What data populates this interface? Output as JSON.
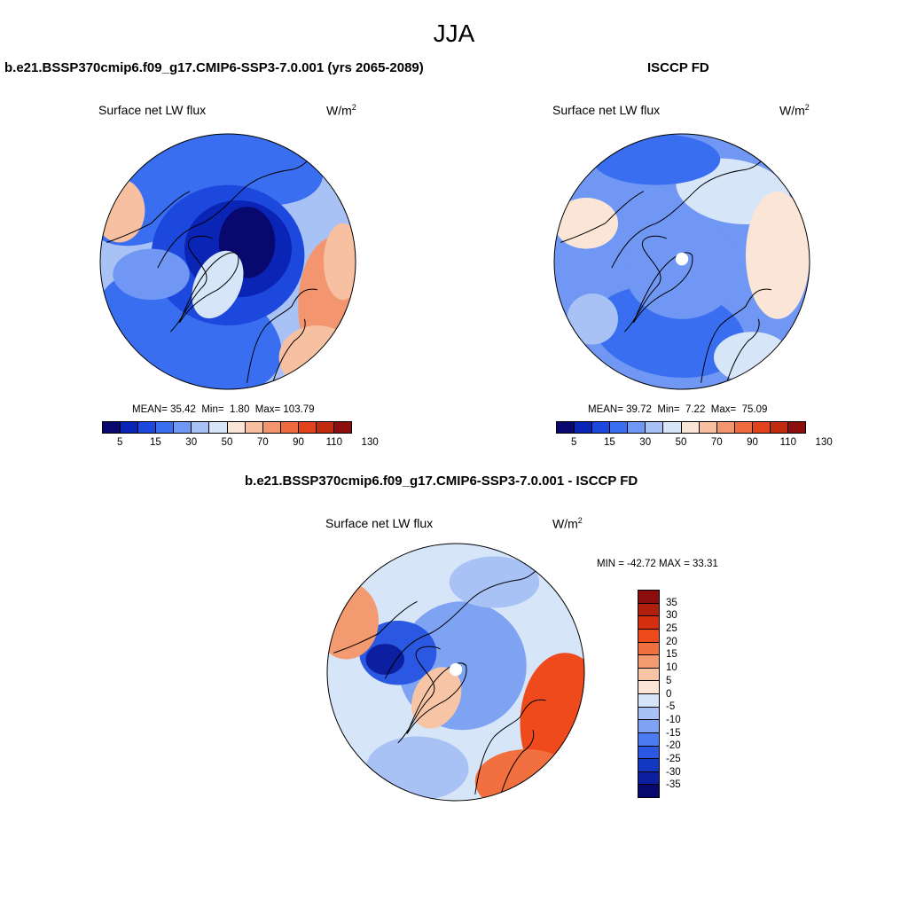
{
  "figure": {
    "season": "JJA"
  },
  "panels": [
    {
      "id": "model",
      "title": "b.e21.BSSP370cmip6.f09_g17.CMIP6-SSP3-7.0.001 (yrs 2065-2089)",
      "variable": "Surface net LW flux",
      "units": "W/m",
      "units_sup": "2",
      "stats": {
        "mean_label": "MEAN=",
        "mean": "35.42",
        "min_label": "Min=",
        "min": "1.80",
        "max_label": "Max=",
        "max": "103.79"
      },
      "levels": [
        "5",
        "15",
        "30",
        "50",
        "70",
        "90",
        "110",
        "130"
      ]
    },
    {
      "id": "obs",
      "title": "ISCCP FD",
      "variable": "Surface net LW flux",
      "units": "W/m",
      "units_sup": "2",
      "stats": {
        "mean_label": "MEAN=",
        "mean": "39.72",
        "min_label": "Min=",
        "min": "7.22",
        "max_label": "Max=",
        "max": "75.09"
      },
      "levels": [
        "5",
        "15",
        "30",
        "50",
        "70",
        "90",
        "110",
        "130"
      ]
    }
  ],
  "difference": {
    "title": "b.e21.BSSP370cmip6.f09_g17.CMIP6-SSP3-7.0.001 - ISCCP FD",
    "variable": "Surface net LW flux",
    "units": "W/m",
    "units_sup": "2",
    "minmax": "MIN = -42.72 MAX =  33.31",
    "levels": [
      "35",
      "30",
      "25",
      "20",
      "15",
      "10",
      "5",
      "0",
      "-5",
      "-10",
      "-15",
      "-20",
      "-25",
      "-30",
      "-35"
    ]
  },
  "colors": {
    "abs_scale": [
      "#08086e",
      "#0a24b5",
      "#1d48dd",
      "#3a6ef0",
      "#6f97f3",
      "#a9c2f5",
      "#d6e5f8",
      "#fbe5d6",
      "#f7c0a0",
      "#f39670",
      "#ef6a3e",
      "#e2431c",
      "#c02a0e",
      "#8c0d0d"
    ],
    "diff_scale": [
      "#8c0d0d",
      "#b01e0e",
      "#d4300f",
      "#ee4a1c",
      "#f2703f",
      "#f49a70",
      "#f8c4a6",
      "#fbe5d6",
      "#d6e5f8",
      "#a9c2f5",
      "#7ea3f3",
      "#4a7bf0",
      "#2a58e2",
      "#1238c2",
      "#0b1fa0",
      "#08086e"
    ],
    "coast": "#000000"
  }
}
